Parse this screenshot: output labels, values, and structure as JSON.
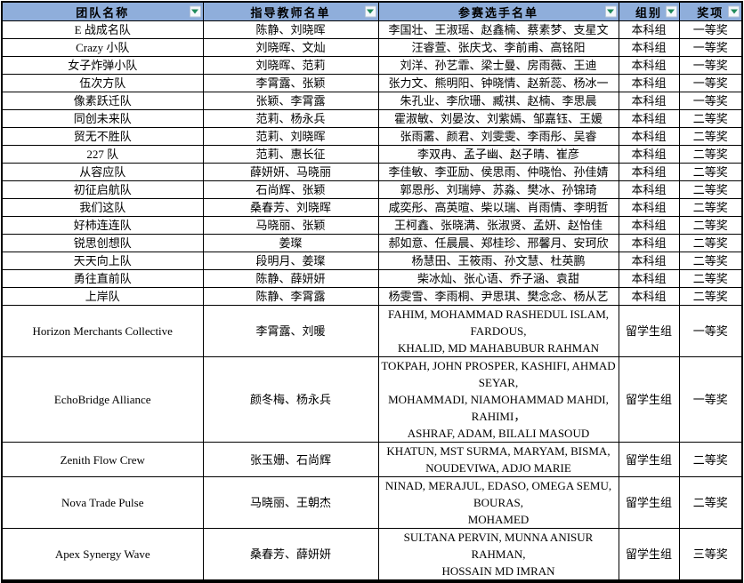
{
  "table": {
    "headers": [
      {
        "label": "团队名称"
      },
      {
        "label": "指导教师名单"
      },
      {
        "label": "参赛选手名单"
      },
      {
        "label": "组别"
      },
      {
        "label": "奖项"
      }
    ],
    "rows": [
      {
        "team": "E 战成名队",
        "instructors": "陈静、刘晓晖",
        "participants": "李国壮、王淑瑶、赵鑫楠、蔡素梦、支星文",
        "group": "本科组",
        "award": "一等奖"
      },
      {
        "team": "Crazy 小队",
        "instructors": "刘晓晖、文灿",
        "participants": "汪睿萱、张庆戈、李前甫、高铭阳",
        "group": "本科组",
        "award": "一等奖"
      },
      {
        "team": "女子炸弹小队",
        "instructors": "刘晓晖、范莉",
        "participants": "刘洋、孙艺霏、梁士曼、房雨薇、王迪",
        "group": "本科组",
        "award": "一等奖"
      },
      {
        "team": "伍次方队",
        "instructors": "李霄露、张颖",
        "participants": "张力文、熊明阳、钟晓情、赵新蕊、杨冰一",
        "group": "本科组",
        "award": "一等奖"
      },
      {
        "team": "像素跃迁队",
        "instructors": "张颖、李霄露",
        "participants": "朱孔业、李欣珊、臧祺、赵楠、李思晨",
        "group": "本科组",
        "award": "一等奖"
      },
      {
        "team": "同创未来队",
        "instructors": "范莉、杨永兵",
        "participants": "霍淑敏、刘晏汝、刘紫嫣、邹嘉钰、王媛",
        "group": "本科组",
        "award": "二等奖"
      },
      {
        "team": "贸无不胜队",
        "instructors": "范莉、刘晓晖",
        "participants": "张雨霱、颜君、刘雯雯、李雨彤、吴睿",
        "group": "本科组",
        "award": "二等奖"
      },
      {
        "team": "227 队",
        "instructors": "范莉、惠长征",
        "participants": "李双冉、孟子幽、赵子晴、崔彦",
        "group": "本科组",
        "award": "二等奖"
      },
      {
        "team": "从容应队",
        "instructors": "薛妍妍、马晓丽",
        "participants": "李佳敏、李亚励、侯思雨、仲晓怡、孙佳婧",
        "group": "本科组",
        "award": "二等奖"
      },
      {
        "team": "初征启航队",
        "instructors": "石尚辉、张颖",
        "participants": "郭恩彤、刘瑞婷、苏淼、樊冰、孙锦琦",
        "group": "本科组",
        "award": "二等奖"
      },
      {
        "team": "我们这队",
        "instructors": "桑春芳、刘晓晖",
        "participants": "咸奕彤、高英暄、柴以瑞、肖雨情、李明哲",
        "group": "本科组",
        "award": "二等奖"
      },
      {
        "team": "好柿连连队",
        "instructors": "马晓丽、张颖",
        "participants": "王柯鑫、张晓满、张淑贤、孟妍、赵怡佳",
        "group": "本科组",
        "award": "二等奖"
      },
      {
        "team": "锐思创想队",
        "instructors": "姜璨",
        "participants": "郝如意、任晨晨、郑桂珍、邢馨月、安珂欣",
        "group": "本科组",
        "award": "二等奖"
      },
      {
        "team": "天天向上队",
        "instructors": "段明月、姜璨",
        "participants": "杨慧田、王筱雨、孙文慧、杜英鹏",
        "group": "本科组",
        "award": "二等奖"
      },
      {
        "team": "勇往直前队",
        "instructors": "陈静、薛妍妍",
        "participants": "柴冰灿、张心语、乔子涵、袁甜",
        "group": "本科组",
        "award": "二等奖"
      },
      {
        "team": "上岸队",
        "instructors": "陈静、李霄露",
        "participants": "杨雯雪、李雨桐、尹思琪、樊念念、杨从艺",
        "group": "本科组",
        "award": "二等奖"
      },
      {
        "team": "Horizon Merchants Collective",
        "instructors": "李霄露、刘暖",
        "participants": [
          "FAHIM, MOHAMMAD RASHEDUL ISLAM,",
          "FARDOUS,",
          "KHALID, MD MAHABUBUR RAHMAN"
        ],
        "group": "留学生组",
        "award": "一等奖"
      },
      {
        "team": "EchoBridge Alliance",
        "instructors": "颜冬梅、杨永兵",
        "participants": [
          "TOKPAH, JOHN PROSPER, KASHIFI, AHMAD",
          "SEYAR,",
          "MOHAMMADI, NIAMOHAMMAD MAHDI,",
          "RAHIMI，",
          "ASHRAF, ADAM, BILALI MASOUD"
        ],
        "group": "留学生组",
        "award": "一等奖"
      },
      {
        "team": "Zenith Flow Crew",
        "instructors": "张玉姗、石尚辉",
        "participants": [
          "KHATUN, MST SURMA, MARYAM, BISMA,",
          "NOUDEVIWA, ADJO MARIE"
        ],
        "group": "留学生组",
        "award": "二等奖"
      },
      {
        "team": "Nova Trade Pulse",
        "instructors": "马晓丽、王朝杰",
        "participants": [
          "NINAD, MERAJUL, EDASO, OMEGA SEMU,",
          "BOURAS,",
          "MOHAMED"
        ],
        "group": "留学生组",
        "award": "二等奖"
      },
      {
        "team": "Apex Synergy Wave",
        "instructors": "桑春芳、薛妍妍",
        "participants": [
          "SULTANA PERVIN, MUNNA ANISUR",
          "RAHMAN,",
          "HOSSAIN MD IMRAN"
        ],
        "group": "留学生组",
        "award": "三等奖"
      }
    ]
  },
  "icons": {
    "header_filter": "filter-dropdown-icon"
  },
  "colors": {
    "header_bg": "#8FAEDB",
    "filter_arrow_green": "#1F8A5B",
    "grid_border": "#000000",
    "cell_bg": "#ffffff"
  }
}
